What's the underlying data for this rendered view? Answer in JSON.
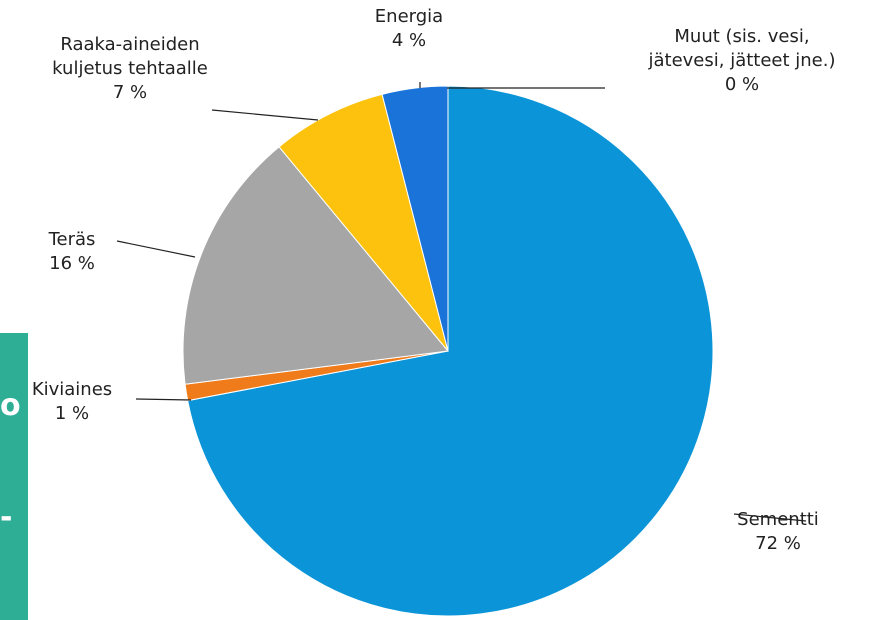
{
  "chart_data": {
    "type": "pie",
    "slices": [
      {
        "label": "Sementti",
        "value": 72,
        "pct_text": "72 %",
        "color": "#0b95d8"
      },
      {
        "label": "Kiviaines",
        "value": 1,
        "pct_text": "1 %",
        "color": "#f07b1b"
      },
      {
        "label": "Teräs",
        "value": 16,
        "pct_text": "16 %",
        "color": "#a6a6a6"
      },
      {
        "label": "Raaka-aineiden kuljetus tehtaalle",
        "label_lines": [
          "Raaka-aineiden",
          "kuljetus tehtaalle"
        ],
        "value": 7,
        "pct_text": "7 %",
        "color": "#fdc20d"
      },
      {
        "label": "Energia",
        "value": 4,
        "pct_text": "4 %",
        "color": "#1a73d9"
      },
      {
        "label": "Muut (sis. vesi, jätevesi, jätteet jne.)",
        "label_lines": [
          "Muut (sis. vesi,",
          "jätevesi, jätteet jne.)"
        ],
        "value": 0,
        "pct_text": "0 %",
        "color": "#1a73d9"
      }
    ],
    "legend": "none"
  },
  "side_panel": {
    "color": "#2fae96",
    "glyphs": [
      "o",
      "-"
    ]
  }
}
